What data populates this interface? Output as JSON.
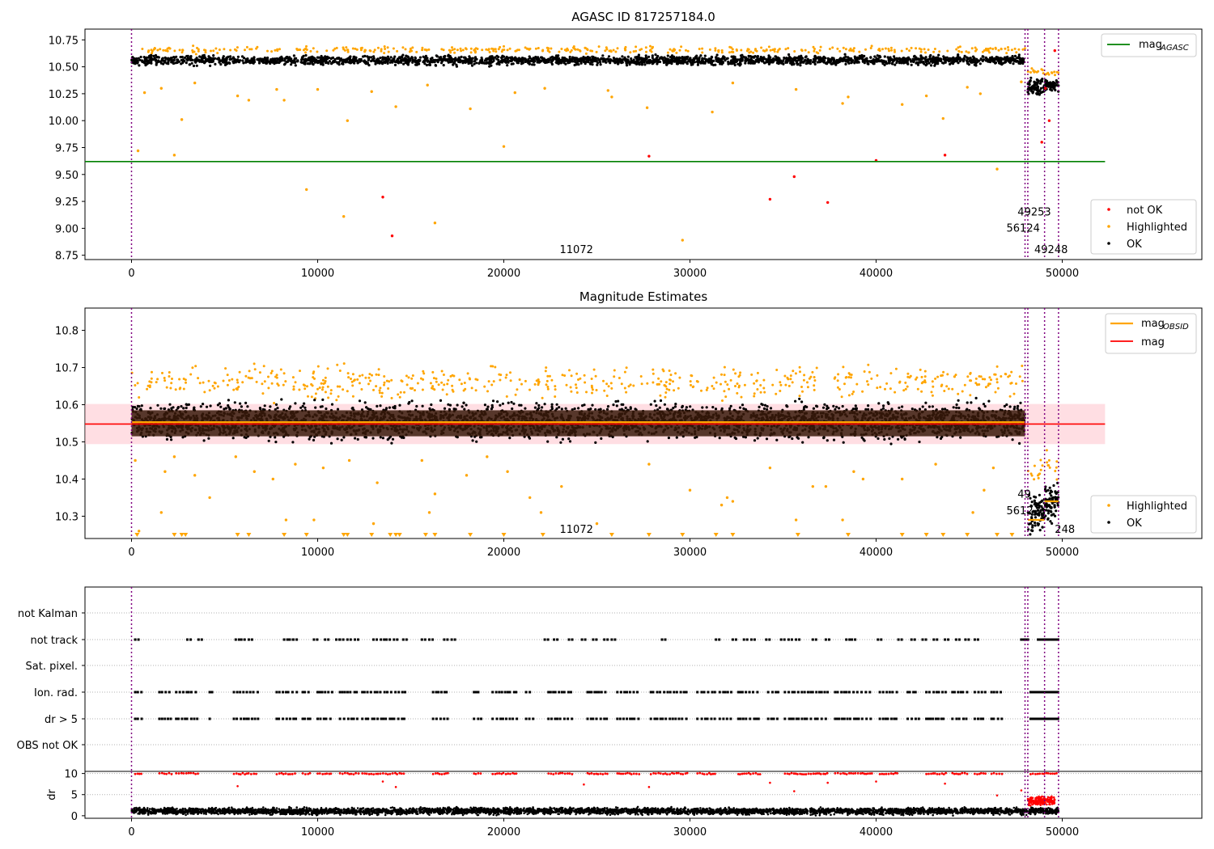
{
  "chart_data": [
    {
      "type": "scatter",
      "title": "AGASC ID 817257184.0",
      "xlim": [
        -2500,
        57500
      ],
      "ylim": [
        8.71,
        10.85
      ],
      "xticks": [
        0,
        10000,
        20000,
        30000,
        40000,
        50000
      ],
      "yticks": [
        8.75,
        9.0,
        9.25,
        9.5,
        9.75,
        10.0,
        10.25,
        10.5,
        10.75
      ],
      "vlines": [
        0,
        48000,
        48150,
        49050,
        49800
      ],
      "hline": {
        "name": "mag_AGASC",
        "y": 9.62,
        "x_end": 52300,
        "color": "#008000"
      },
      "annotations": [
        {
          "text": "11072",
          "x": 23000,
          "y": 8.77
        },
        {
          "text": "49253",
          "x": 47600,
          "y": 9.12
        },
        {
          "text": "56124",
          "x": 47000,
          "y": 8.97
        },
        {
          "text": "49248",
          "x": 48500,
          "y": 8.77
        }
      ],
      "series": [
        {
          "name": "OK",
          "color": "#000000",
          "bands": [
            {
              "x0": 0,
              "x1": 48000,
              "ylo": 10.5,
              "yhi": 10.62
            },
            {
              "x0": 48150,
              "x1": 49050,
              "ylo": 10.2,
              "yhi": 10.42
            },
            {
              "x0": 49050,
              "x1": 49800,
              "ylo": 10.25,
              "yhi": 10.4
            }
          ]
        },
        {
          "name": "Highlighted",
          "color": "#ffa500",
          "x": [
            350,
            700,
            1600,
            2300,
            2700,
            3400,
            5700,
            6300,
            7800,
            8200,
            9400,
            10000,
            11400,
            11600,
            12900,
            14200,
            15900,
            16300,
            18200,
            20000,
            20600,
            22200,
            25600,
            25800,
            27700,
            29600,
            31200,
            32300,
            35700,
            38200,
            38500,
            41400,
            42700,
            43600,
            44900,
            45600,
            46500,
            47800
          ],
          "y": [
            9.72,
            10.26,
            10.3,
            9.68,
            10.01,
            10.35,
            10.23,
            10.19,
            10.29,
            10.19,
            9.36,
            10.29,
            9.11,
            10.0,
            10.27,
            10.13,
            10.33,
            9.05,
            10.11,
            9.76,
            10.26,
            10.3,
            10.28,
            10.22,
            10.12,
            8.89,
            10.08,
            10.35,
            10.29,
            10.16,
            10.22,
            10.15,
            10.23,
            10.02,
            10.31,
            10.25,
            9.55,
            10.36
          ]
        },
        {
          "name": "not OK",
          "color": "#ff0000",
          "x": [
            13500,
            14000,
            27800,
            34300,
            35600,
            37400,
            40000,
            43700,
            48900,
            49100,
            49300,
            49600
          ],
          "y": [
            9.29,
            8.93,
            9.67,
            9.27,
            9.48,
            9.24,
            9.63,
            9.68,
            9.8,
            10.3,
            10.0,
            10.65
          ]
        }
      ],
      "legends": [
        {
          "position": "top-right",
          "entries": [
            {
              "label": "mag",
              "sub": "AGASC",
              "color": "#008000",
              "kind": "line"
            }
          ]
        },
        {
          "position": "bottom-right",
          "entries": [
            {
              "label": "not OK",
              "color": "#ff0000",
              "kind": "dot"
            },
            {
              "label": "Highlighted",
              "color": "#ffa500",
              "kind": "dot"
            },
            {
              "label": "OK",
              "color": "#000000",
              "kind": "dot"
            }
          ]
        }
      ]
    },
    {
      "type": "scatter",
      "title": "Magnitude Estimates",
      "xlim": [
        -2500,
        57500
      ],
      "ylim": [
        10.24,
        10.86
      ],
      "xticks": [
        0,
        10000,
        20000,
        30000,
        40000,
        50000
      ],
      "yticks": [
        10.3,
        10.4,
        10.5,
        10.6,
        10.7,
        10.8
      ],
      "vlines": [
        0,
        48000,
        48150,
        49050,
        49800
      ],
      "mag_line": {
        "name": "mag",
        "y": 10.548,
        "x_end": 52300,
        "color": "#ff0000",
        "band": [
          10.494,
          10.602
        ]
      },
      "mag_obsid": [
        {
          "x0": 0,
          "x1": 48000,
          "y": 10.553
        },
        {
          "x0": 48150,
          "x1": 49050,
          "y": 10.29
        },
        {
          "x0": 49050,
          "x1": 49800,
          "y": 10.34
        }
      ],
      "annotations": [
        {
          "text": "11072",
          "x": 23000,
          "y": 10.255
        },
        {
          "text": "49",
          "x": 47600,
          "y": 10.35
        },
        {
          "text": "5612",
          "x": 47000,
          "y": 10.305
        },
        {
          "text": "248",
          "x": 49600,
          "y": 10.255
        }
      ],
      "series": [
        {
          "name": "OK",
          "color": "#000000",
          "bands": [
            {
              "x0": 0,
              "x1": 48000,
              "ylo": 10.49,
              "yhi": 10.62
            },
            {
              "x0": 48150,
              "x1": 49050,
              "ylo": 10.24,
              "yhi": 10.38
            },
            {
              "x0": 49050,
              "x1": 49800,
              "ylo": 10.27,
              "yhi": 10.4
            }
          ]
        },
        {
          "name": "Highlighted",
          "color": "#ffa500",
          "x": [
            200,
            400,
            1600,
            1800,
            2300,
            3400,
            4200,
            5600,
            6600,
            7600,
            8300,
            8800,
            9800,
            10300,
            11700,
            13000,
            13200,
            15600,
            16000,
            16300,
            18000,
            19100,
            20200,
            21400,
            22000,
            23100,
            25000,
            27800,
            30000,
            31700,
            32000,
            32300,
            34300,
            35700,
            36600,
            37300,
            38200,
            38800,
            39300,
            41400,
            43200,
            45200,
            45800,
            46300
          ],
          "y": [
            10.45,
            10.26,
            10.31,
            10.42,
            10.46,
            10.41,
            10.35,
            10.46,
            10.42,
            10.4,
            10.29,
            10.44,
            10.29,
            10.43,
            10.45,
            10.28,
            10.39,
            10.45,
            10.31,
            10.36,
            10.41,
            10.46,
            10.42,
            10.35,
            10.31,
            10.38,
            10.28,
            10.44,
            10.37,
            10.33,
            10.35,
            10.34,
            10.43,
            10.29,
            10.38,
            10.38,
            10.29,
            10.42,
            10.4,
            10.4,
            10.44,
            10.31,
            10.37,
            10.43
          ]
        },
        {
          "name": "below range",
          "color": "#ffa500",
          "marker": "triangle-down",
          "x": [
            300,
            2300,
            2700,
            2900,
            5700,
            6300,
            8200,
            9400,
            11400,
            11600,
            12900,
            13900,
            14200,
            14400,
            15800,
            16300,
            18200,
            20000,
            22100,
            25800,
            27800,
            29600,
            31400,
            32300,
            35800,
            38500,
            41400,
            42700,
            43600,
            44900,
            46500,
            47300
          ]
        }
      ],
      "legends": [
        {
          "position": "top-right",
          "entries": [
            {
              "label": "mag",
              "sub": "OBSID",
              "color": "#ffa500",
              "kind": "line"
            },
            {
              "label": "mag",
              "sub": "",
              "color": "#ff0000",
              "kind": "line"
            }
          ]
        },
        {
          "position": "bottom-right",
          "entries": [
            {
              "label": "Highlighted",
              "color": "#ffa500",
              "kind": "dot"
            },
            {
              "label": "OK",
              "color": "#000000",
              "kind": "dot"
            }
          ]
        }
      ]
    },
    {
      "type": "scatter",
      "title": "",
      "xlim": [
        -2500,
        57500
      ],
      "categories": [
        "not Kalman",
        "not track",
        "Sat. pixel.",
        "Ion. rad.",
        "dr > 5",
        "OBS not OK"
      ],
      "vlines": [
        0,
        48000,
        48150,
        49050,
        49800
      ],
      "flags": {
        "not track": {
          "x": [
            200,
            3000,
            3600,
            5600,
            5900,
            6300,
            8200,
            8500,
            8700,
            9800,
            10400,
            11000,
            11200,
            11600,
            12000,
            13000,
            13400,
            13700,
            14100,
            14600,
            15600,
            16000,
            16800,
            17200,
            22200,
            22700,
            23500,
            24200,
            24800,
            25400,
            25800,
            28500,
            31400,
            32300,
            32900,
            33300,
            34100,
            34900,
            35300,
            35700,
            36600,
            37300,
            38400,
            38700,
            40100,
            41200,
            41900,
            42500,
            43100,
            43700,
            44300,
            44800,
            45300
          ],
          "dense": [
            [
              47800,
              48200
            ],
            [
              48700,
              49800
            ]
          ]
        },
        "Ion. rad.": {
          "x_ranges": [
            [
              200,
              600
            ],
            [
              1500,
              2200
            ],
            [
              2400,
              3600
            ],
            [
              4200,
              4400
            ],
            [
              5500,
              6800
            ],
            [
              7800,
              8900
            ],
            [
              9200,
              9600
            ],
            [
              10000,
              10800
            ],
            [
              11200,
              12200
            ],
            [
              12400,
              14700
            ],
            [
              16200,
              17000
            ],
            [
              18400,
              18800
            ],
            [
              19400,
              20800
            ],
            [
              21200,
              21600
            ],
            [
              22400,
              23700
            ],
            [
              24500,
              25600
            ],
            [
              26100,
              27300
            ],
            [
              27900,
              29900
            ],
            [
              30400,
              31400
            ],
            [
              31600,
              32300
            ],
            [
              32600,
              33800
            ],
            [
              34200,
              34800
            ],
            [
              35100,
              37400
            ],
            [
              37800,
              39800
            ],
            [
              40200,
              41200
            ],
            [
              41700,
              42300
            ],
            [
              42700,
              43800
            ],
            [
              44100,
              44900
            ],
            [
              45300,
              45900
            ],
            [
              46200,
              46800
            ],
            [
              48300,
              49800
            ]
          ]
        },
        "dr > 5": {
          "x_ranges": [
            [
              200,
              600
            ],
            [
              1500,
              2200
            ],
            [
              2400,
              3600
            ],
            [
              4200,
              4400
            ],
            [
              5500,
              6800
            ],
            [
              7800,
              8900
            ],
            [
              9200,
              9600
            ],
            [
              10000,
              10800
            ],
            [
              11200,
              12200
            ],
            [
              12400,
              14700
            ],
            [
              16200,
              17000
            ],
            [
              18400,
              18800
            ],
            [
              19400,
              20800
            ],
            [
              21200,
              21600
            ],
            [
              22400,
              23700
            ],
            [
              24500,
              25600
            ],
            [
              26100,
              27300
            ],
            [
              27900,
              29900
            ],
            [
              30400,
              31400
            ],
            [
              31600,
              32300
            ],
            [
              32600,
              33800
            ],
            [
              34200,
              34800
            ],
            [
              35100,
              37400
            ],
            [
              37800,
              39800
            ],
            [
              40200,
              41200
            ],
            [
              41700,
              42300
            ],
            [
              42700,
              43800
            ],
            [
              44100,
              44900
            ],
            [
              45300,
              45900
            ],
            [
              46200,
              46800
            ],
            [
              48300,
              49800
            ]
          ]
        }
      }
    },
    {
      "type": "scatter",
      "title": "",
      "ylabel": "dr",
      "xlim": [
        -2500,
        57500
      ],
      "ylim": [
        -0.6,
        10.5
      ],
      "xticks": [
        0,
        10000,
        20000,
        30000,
        40000,
        50000
      ],
      "yticks": [
        0,
        5,
        10
      ],
      "vlines": [
        0,
        48000,
        48150,
        49050,
        49800
      ],
      "series": [
        {
          "name": "OK",
          "color": "#000000",
          "band": {
            "x0": 0,
            "x1": 49800,
            "ylo": 0.0,
            "yhi": 2.2
          }
        },
        {
          "name": "not OK",
          "color": "#ff0000",
          "band": {
            "x0": 48150,
            "x1": 49600,
            "ylo": 2.0,
            "yhi": 5.0
          },
          "top_x_ranges": [
            [
              200,
              600
            ],
            [
              1500,
              2200
            ],
            [
              2400,
              3600
            ],
            [
              5500,
              6800
            ],
            [
              7800,
              8900
            ],
            [
              9200,
              9600
            ],
            [
              10000,
              10800
            ],
            [
              11200,
              12200
            ],
            [
              12400,
              14700
            ],
            [
              16200,
              17000
            ],
            [
              18400,
              18800
            ],
            [
              19400,
              20800
            ],
            [
              22400,
              23700
            ],
            [
              24500,
              25600
            ],
            [
              26100,
              27300
            ],
            [
              27900,
              29900
            ],
            [
              30400,
              31400
            ],
            [
              32600,
              33800
            ],
            [
              35100,
              37400
            ],
            [
              37800,
              39800
            ],
            [
              40200,
              41200
            ],
            [
              42700,
              43800
            ],
            [
              44100,
              44900
            ],
            [
              45300,
              45900
            ],
            [
              46200,
              46800
            ],
            [
              48300,
              49800
            ]
          ],
          "x": [
            5700,
            13500,
            14200,
            24300,
            27800,
            34300,
            35600,
            37400,
            40000,
            43700,
            46500,
            47800
          ],
          "y": [
            7.0,
            8.1,
            6.8,
            7.4,
            6.8,
            7.8,
            5.8,
            7.8,
            8.1,
            7.6,
            4.8,
            6.0
          ]
        }
      ]
    }
  ]
}
